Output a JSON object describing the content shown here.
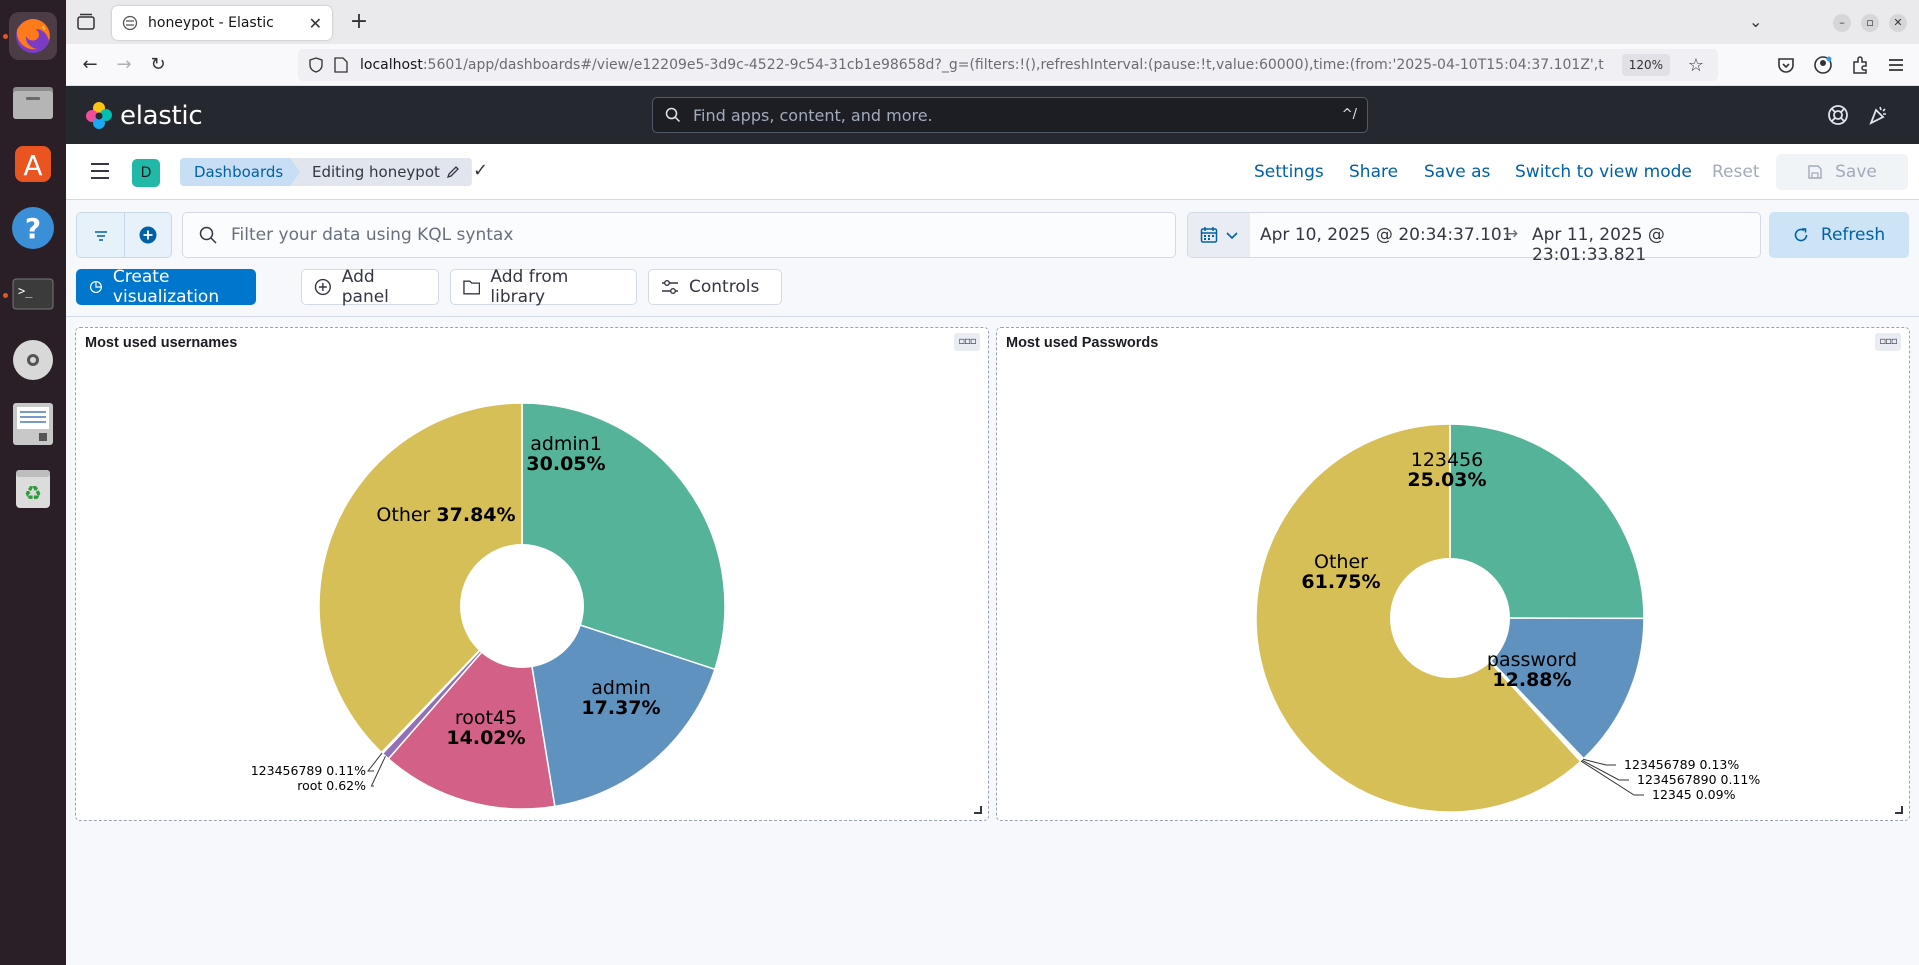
{
  "browser": {
    "tab_title": "honeypot - Elastic",
    "url_host": "localhost",
    "url_rest": ":5601/app/dashboards#/view/e12209e5-3d9c-4522-9c54-31cb1e98658d?_g=(filters:!(),refreshInterval:(pause:!t,value:60000),time:(from:'2025-04-10T15:04:37.101Z',t",
    "zoom": "120%"
  },
  "kibana": {
    "logo_text": "elastic",
    "search_placeholder": "Find apps, content, and more.",
    "search_shortcut": "^/"
  },
  "breadcrumbs": {
    "space_initial": "D",
    "items": [
      "Dashboards",
      "Editing honeypot"
    ]
  },
  "top_nav": {
    "settings": "Settings",
    "share": "Share",
    "save_as": "Save as",
    "switch_mode": "Switch to view mode",
    "reset": "Reset",
    "save": "Save"
  },
  "query": {
    "kql_placeholder": "Filter your data using KQL syntax",
    "date_start": "Apr 10, 2025 @ 20:34:37.101",
    "date_end": "Apr 11, 2025 @ 23:01:33.821",
    "refresh": "Refresh"
  },
  "toolbar": {
    "create_visualization": "Create visualization",
    "add_panel": "Add panel",
    "add_from_library": "Add from library",
    "controls": "Controls"
  },
  "panels": [
    {
      "title": "Most used usernames"
    },
    {
      "title": "Most used Passwords"
    }
  ],
  "chart_data": [
    {
      "type": "pie",
      "title": "Most used usernames",
      "donut": true,
      "slices": [
        {
          "label": "admin1",
          "pct": "30.05%",
          "value": 30.05,
          "color": "#54b399"
        },
        {
          "label": "admin",
          "pct": "17.37%",
          "value": 17.37,
          "color": "#6092c0"
        },
        {
          "label": "root45",
          "pct": "14.02%",
          "value": 14.02,
          "color": "#d36086"
        },
        {
          "label": "root",
          "pct": "0.62%",
          "value": 0.62,
          "color": "#9170b8"
        },
        {
          "label": "123456789",
          "pct": "0.11%",
          "value": 0.11,
          "color": "#ca8eae"
        },
        {
          "label": "Other",
          "pct": "37.84%",
          "value": 37.84,
          "color": "#d6bf57"
        }
      ]
    },
    {
      "type": "pie",
      "title": "Most used Passwords",
      "donut": true,
      "slices": [
        {
          "label": "123456",
          "pct": "25.03%",
          "value": 25.03,
          "color": "#54b399"
        },
        {
          "label": "password",
          "pct": "12.88%",
          "value": 12.88,
          "color": "#6092c0"
        },
        {
          "label": "123456789",
          "pct": "0.13%",
          "value": 0.13,
          "color": "#d36086"
        },
        {
          "label": "1234567890",
          "pct": "0.11%",
          "value": 0.11,
          "color": "#9170b8"
        },
        {
          "label": "12345",
          "pct": "0.09%",
          "value": 0.09,
          "color": "#ca8eae"
        },
        {
          "label": "Other",
          "pct": "61.75%",
          "value": 61.75,
          "color": "#d6bf57"
        }
      ]
    }
  ]
}
